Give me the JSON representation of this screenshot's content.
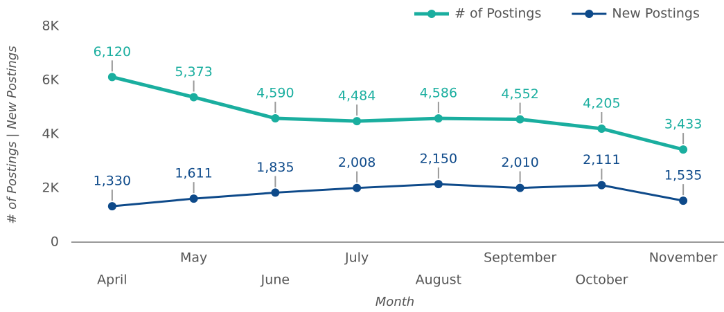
{
  "chart_data": {
    "type": "line",
    "xlabel": "Month",
    "ylabel": "# of Postings | New Postings",
    "categories": [
      "April",
      "May",
      "June",
      "July",
      "August",
      "September",
      "October",
      "November"
    ],
    "series": [
      {
        "name": "# of Postings",
        "color": "#1aae9f",
        "values": [
          6120,
          5373,
          4590,
          4484,
          4586,
          4552,
          4205,
          3433
        ],
        "value_labels": [
          "6,120",
          "5,373",
          "4,590",
          "4,484",
          "4,586",
          "4,552",
          "4,205",
          "3,433"
        ]
      },
      {
        "name": "New Postings",
        "color": "#0e4a8a",
        "values": [
          1330,
          1611,
          1835,
          2008,
          2150,
          2010,
          2111,
          1535
        ],
        "value_labels": [
          "1,330",
          "1,611",
          "1,835",
          "2,008",
          "2,150",
          "2,010",
          "2,111",
          "1,535"
        ]
      }
    ],
    "ylim": [
      0,
      8000
    ],
    "yticks": [
      0,
      {
        "value": 2000,
        "label": "2K"
      },
      {
        "value": 4000,
        "label": "4K"
      },
      {
        "value": 6000,
        "label": "6K"
      },
      {
        "value": 8000,
        "label": "8K"
      }
    ],
    "legend": "top-right",
    "grid": false
  }
}
